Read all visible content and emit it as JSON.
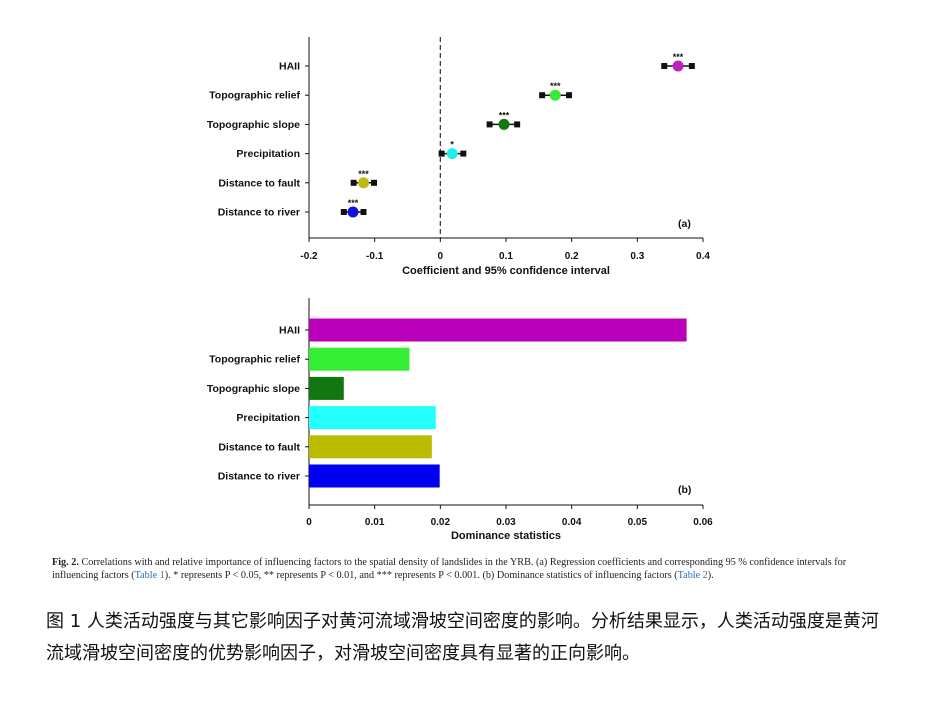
{
  "chart_data": [
    {
      "type": "scatter",
      "panel_label": "(a)",
      "xlabel": "Coefficient and 95% confidence interval",
      "xlim": [
        -0.2,
        0.4
      ],
      "xticks": [
        "-0.2",
        "-0.1",
        "0",
        "0.1",
        "0.2",
        "0.3",
        "0.4"
      ],
      "xtick_values": [
        -0.2,
        -0.1,
        0,
        0.1,
        0.2,
        0.3,
        0.4
      ],
      "reference_line": 0,
      "categories": [
        "HAII",
        "Topographic relief",
        "Topographic slope",
        "Precipitation",
        "Distance to fault",
        "Distance to river"
      ],
      "points": [
        {
          "label": "HAII",
          "coef": 0.362,
          "low": 0.341,
          "high": 0.383,
          "sig": "***",
          "color": "#bb22bb"
        },
        {
          "label": "Topographic relief",
          "coef": 0.175,
          "low": 0.155,
          "high": 0.196,
          "sig": "***",
          "color": "#33ee33"
        },
        {
          "label": "Topographic slope",
          "coef": 0.097,
          "low": 0.075,
          "high": 0.117,
          "sig": "***",
          "color": "#117711"
        },
        {
          "label": "Precipitation",
          "coef": 0.018,
          "low": 0.002,
          "high": 0.035,
          "sig": "*",
          "color": "#22eeee"
        },
        {
          "label": "Distance to fault",
          "coef": -0.117,
          "low": -0.132,
          "high": -0.101,
          "sig": "***",
          "color": "#bbbb11"
        },
        {
          "label": "Distance to river",
          "coef": -0.133,
          "low": -0.147,
          "high": -0.117,
          "sig": "***",
          "color": "#1111dd"
        }
      ]
    },
    {
      "type": "bar",
      "orientation": "horizontal",
      "panel_label": "(b)",
      "xlabel": "Dominance statistics",
      "xlim": [
        0,
        0.06
      ],
      "xticks": [
        "0",
        "0.01",
        "0.02",
        "0.03",
        "0.04",
        "0.05",
        "0.06"
      ],
      "xtick_values": [
        0,
        0.01,
        0.02,
        0.03,
        0.04,
        0.05,
        0.06
      ],
      "categories": [
        "HAII",
        "Topographic relief",
        "Topographic slope",
        "Precipitation",
        "Distance to fault",
        "Distance to river"
      ],
      "values": [
        0.0575,
        0.0153,
        0.0053,
        0.0193,
        0.0187,
        0.0199
      ],
      "colors": [
        "#bb00bb",
        "#33ee33",
        "#117711",
        "#22ffff",
        "#bbbb00",
        "#0000ee"
      ]
    }
  ],
  "caption_en": {
    "fig_label": "Fig. 2.",
    "part1": " Correlations with and relative importance of influencing factors to the spatial density of landslides in the YRB. (a) Regression coefficients and corresponding 95 % confidence intervals for influencing factors (",
    "link1": "Table 1",
    "part2": "). * represents P < 0.05, ** represents P < 0.01, and *** represents P < 0.001. (b) Dominance statistics of influencing factors (",
    "link2": "Table 2",
    "part3": ")."
  },
  "caption_cn": "图 1  人类活动强度与其它影响因子对黄河流域滑坡空间密度的影响。分析结果显示，人类活动强度是黄河流域滑坡空间密度的优势影响因子，对滑坡空间密度具有显著的正向影响。"
}
